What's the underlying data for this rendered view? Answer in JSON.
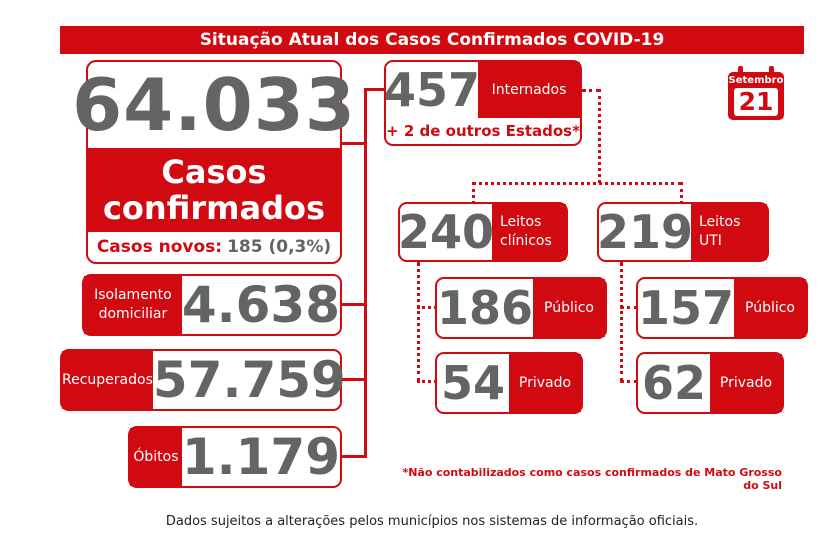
{
  "header": {
    "title": "Situação Atual dos Casos Confirmados COVID-19"
  },
  "date": {
    "month": "Setembro",
    "day": "21"
  },
  "confirmed": {
    "value": "64.033",
    "label_line1": "Casos",
    "label_line2": "confirmados",
    "new_label": "Casos novos:",
    "new_value": "185 (0,3%)"
  },
  "isolation": {
    "label_line1": "Isolamento",
    "label_line2": "domiciliar",
    "value": "4.638"
  },
  "recovered": {
    "label": "Recuperados",
    "value": "57.759"
  },
  "deaths": {
    "label": "Óbitos",
    "value": "1.179"
  },
  "hospitalized": {
    "value": "457",
    "label": "Internados",
    "other_states": "+ 2 de outros Estados*"
  },
  "clinical_beds": {
    "value": "240",
    "label_line1": "Leitos",
    "label_line2": "clínicos",
    "public": {
      "value": "186",
      "label": "Público"
    },
    "private": {
      "value": "54",
      "label": "Privado"
    }
  },
  "icu_beds": {
    "value": "219",
    "label_line1": "Leitos",
    "label_line2": "UTI",
    "public": {
      "value": "157",
      "label": "Público"
    },
    "private": {
      "value": "62",
      "label": "Privado"
    }
  },
  "footnote": "*Não contabilizados como casos confirmados de Mato Grosso do Sul",
  "disclaimer": "Dados sujeitos a alterações pelos municípios nos sistemas de informação oficiais.",
  "colors": {
    "accent": "#d10a11",
    "number_gray": "#646464"
  }
}
